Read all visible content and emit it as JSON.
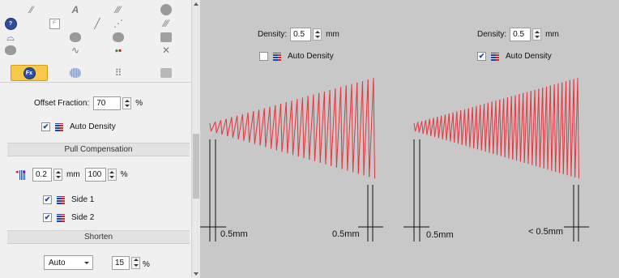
{
  "properties": {
    "offset_fraction_label": "Offset Fraction:",
    "offset_fraction_value": "70",
    "offset_fraction_unit": "%",
    "auto_density_label": "Auto Density",
    "auto_density_checked": true,
    "pull_compensation": {
      "title": "Pull Compensation",
      "mm_value": "0.2",
      "mm_unit": "mm",
      "percent_value": "100",
      "percent_unit": "%",
      "side1_label": "Side 1",
      "side1_checked": true,
      "side2_label": "Side 2",
      "side2_checked": true
    },
    "shorten": {
      "title": "Shorten",
      "mode": "Auto",
      "value": "15",
      "unit": "%"
    }
  },
  "tool_icons": [
    "needle-icon",
    "stitch-a-icon",
    "diagonal-stitch-icon",
    "circle-shape-icon",
    "help-icon",
    "text-field-icon",
    "line-icon",
    "dotted-line-icon",
    "pen-icon",
    "arch-icon",
    "shape-fill-icon",
    "shape-fill-icon",
    "shape-fill-icon",
    "shape-icon",
    "wave-icon",
    "node-icon",
    "cross-icon",
    "fx-icon",
    "satin-icon",
    "grid-icon",
    "square-icon"
  ],
  "fx_label": "Fx",
  "help_label": "?",
  "text_field_label": "F",
  "preview": {
    "left": {
      "density_label": "Density:",
      "density_value": "0.5",
      "density_unit": "mm",
      "auto_density_label": "Auto Density",
      "auto_density_checked": false,
      "mark_left": "0.5mm",
      "mark_right": "0.5mm"
    },
    "right": {
      "density_label": "Density:",
      "density_value": "0.5",
      "density_unit": "mm",
      "auto_density_label": "Auto Density",
      "auto_density_checked": true,
      "mark_left": "0.5mm",
      "mark_right": "< 0.5mm"
    }
  },
  "colors": {
    "stitch": "#e8323c",
    "canvas": "#c8c8c8",
    "selected_tool": "#f5c84a"
  }
}
